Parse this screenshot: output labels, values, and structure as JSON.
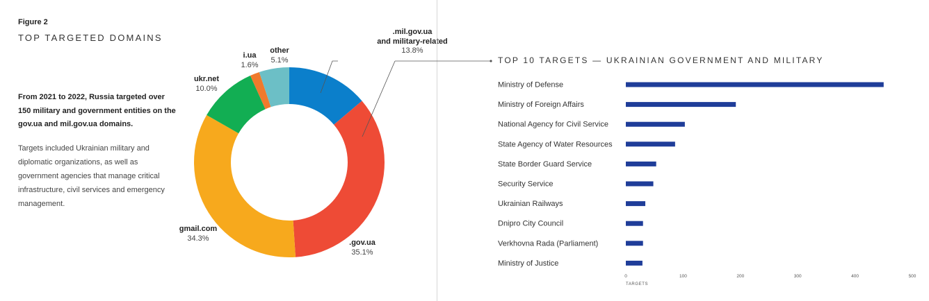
{
  "figure_label": "Figure 2",
  "title": "TOP TARGETED DOMAINS",
  "lead": "From 2021 to 2022, Russia targeted over 150 military and government entities on the gov.ua and mil.gov.ua domains.",
  "body": "Targets included Ukrainian military and diplomatic organizations, as well as government agencies that manage critical infrastructure, civil services and emergency management.",
  "chart_data": [
    {
      "type": "pie",
      "title": "TOP TARGETED DOMAINS",
      "categories": [
        ".mil.gov.ua and military-related",
        ".gov.ua",
        "gmail.com",
        "ukr.net",
        "i.ua",
        "other"
      ],
      "values": [
        13.8,
        35.1,
        34.3,
        10.0,
        1.6,
        5.1
      ],
      "labels": [
        {
          "name_lines": [
            ".mil.gov.ua",
            "and military-related"
          ],
          "pct": "13.8%"
        },
        {
          "name_lines": [
            ".gov.ua"
          ],
          "pct": "35.1%"
        },
        {
          "name_lines": [
            "gmail.com"
          ],
          "pct": "34.3%"
        },
        {
          "name_lines": [
            "ukr.net"
          ],
          "pct": "10.0%"
        },
        {
          "name_lines": [
            "i.ua"
          ],
          "pct": "1.6%"
        },
        {
          "name_lines": [
            "other"
          ],
          "pct": "5.1%"
        }
      ],
      "colors": [
        "#0b7fcb",
        "#ee4b36",
        "#f7a91d",
        "#12ae53",
        "#f07a2c",
        "#6cbfc6"
      ]
    },
    {
      "type": "bar",
      "orientation": "horizontal",
      "title": "TOP 10 TARGETS — UKRAINIAN GOVERNMENT AND MILITARY",
      "categories": [
        "Ministry of Defense",
        "Ministry of Foreign Affairs",
        "National Agency for Civil Service",
        "State Agency of Water Resources",
        "State Border Guard Service",
        "Security Service",
        "Ukrainian Railways",
        "Dnipro City Council",
        "Verkhovna Rada (Parliament)",
        "Ministry of Justice"
      ],
      "values": [
        450,
        192,
        103,
        86,
        53,
        48,
        34,
        30,
        30,
        29
      ],
      "xlabel": "TARGETS",
      "xlim": [
        0,
        500
      ],
      "xticks": [
        0,
        100,
        200,
        300,
        400,
        500
      ],
      "color": "#1f3d99"
    }
  ]
}
